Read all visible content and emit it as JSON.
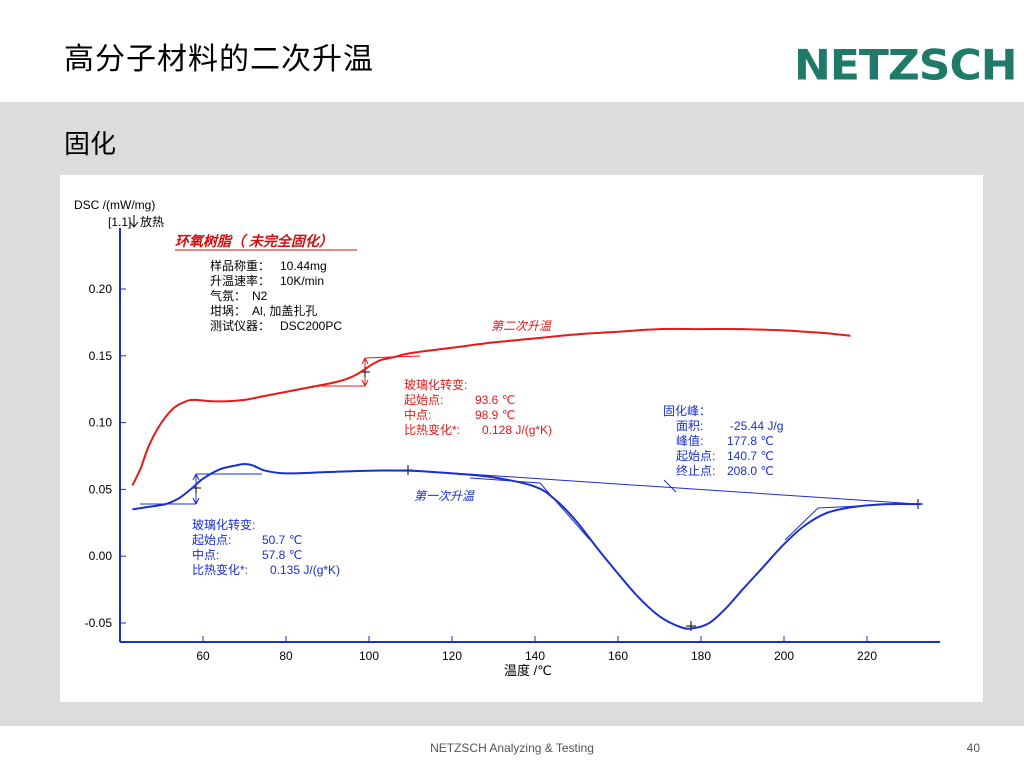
{
  "slide": {
    "title": "高分子材料的二次升温",
    "logo": "NETZSCH",
    "subtitle": "固化",
    "footer": "NETZSCH Analyzing & Testing",
    "page_number": "40"
  },
  "colors": {
    "first_heating": "#1a2fd0",
    "second_heating": "#e81818",
    "logo": "#1f7a6a",
    "axis": "#1a2fd0"
  },
  "chart_data": {
    "type": "line",
    "ylabel": "DSC /(mW/mg)",
    "ylabel2": "[1.1]",
    "exo_label": "放热",
    "xlabel": "温度 /℃",
    "xlim": [
      42,
      237
    ],
    "ylim": [
      -0.065,
      0.26
    ],
    "xticks": [
      60,
      80,
      100,
      120,
      140,
      160,
      180,
      200,
      220
    ],
    "yticks": [
      -0.05,
      0.0,
      0.05,
      0.1,
      0.15,
      0.2
    ],
    "ytick_labels": [
      "-0.05",
      "0.00",
      "0.05",
      "0.10",
      "0.15",
      "0.20"
    ],
    "sample_title": "环氧树脂（ 未完全固化）",
    "sample_info": [
      {
        "label": "样品称重：",
        "value": "10.44mg"
      },
      {
        "label": "升温速率：",
        "value": "10K/min"
      },
      {
        "label": "气氛：",
        "value": "N2"
      },
      {
        "label": "坩埚：",
        "value": "Al,  加盖扎孔"
      },
      {
        "label": "测试仪器：",
        "value": "DSC200PC"
      }
    ],
    "series": [
      {
        "name": "第二次升温",
        "color": "#e81818",
        "x": [
          43,
          45,
          47,
          50,
          53,
          56,
          58,
          62,
          66,
          70,
          75,
          80,
          85,
          90,
          94,
          97,
          99,
          101,
          103,
          106,
          110,
          120,
          130,
          140,
          150,
          160,
          170,
          180,
          190,
          200,
          205,
          210,
          216
        ],
        "y": [
          0.053,
          0.066,
          0.083,
          0.1,
          0.111,
          0.116,
          0.117,
          0.116,
          0.116,
          0.117,
          0.12,
          0.123,
          0.126,
          0.129,
          0.132,
          0.136,
          0.14,
          0.144,
          0.147,
          0.149,
          0.152,
          0.156,
          0.16,
          0.163,
          0.166,
          0.168,
          0.17,
          0.17,
          0.17,
          0.169,
          0.168,
          0.167,
          0.165
        ]
      },
      {
        "name": "第一次升温",
        "color": "#1a2fd0",
        "x": [
          43,
          47,
          51,
          54,
          57,
          60,
          64,
          68,
          70,
          72,
          75,
          80,
          90,
          100,
          110,
          120,
          130,
          140,
          145,
          150,
          155,
          160,
          165,
          170,
          175,
          178,
          182,
          186,
          190,
          195,
          200,
          205,
          210,
          215,
          220,
          225,
          233
        ],
        "y": [
          0.035,
          0.037,
          0.039,
          0.043,
          0.05,
          0.058,
          0.065,
          0.068,
          0.069,
          0.068,
          0.064,
          0.062,
          0.063,
          0.064,
          0.064,
          0.062,
          0.059,
          0.052,
          0.042,
          0.026,
          0.006,
          -0.013,
          -0.031,
          -0.045,
          -0.053,
          -0.054,
          -0.05,
          -0.039,
          -0.025,
          -0.008,
          0.009,
          0.023,
          0.032,
          0.036,
          0.038,
          0.039,
          0.039
        ]
      }
    ],
    "series_labels": {
      "second": "第二次升温",
      "first": "第一次升温"
    },
    "annotations": {
      "glass_transition_2": {
        "title": "玻璃化转变:",
        "onset_label": "起始点:",
        "onset_value": "93.6 ℃",
        "mid_label": "中点:",
        "mid_value": "98.9 ℃",
        "cp_label": "比热变化*:",
        "cp_value": "0.128 J/(g*K)"
      },
      "glass_transition_1": {
        "title": "玻璃化转变:",
        "onset_label": "起始点:",
        "onset_value": "50.7 ℃",
        "mid_label": "中点:",
        "mid_value": "57.8 ℃",
        "cp_label": "比热变化*:",
        "cp_value": "0.135 J/(g*K)"
      },
      "cure_peak": {
        "title": "固化峰：",
        "area_label": "面积:",
        "area_value": "-25.44 J/g",
        "peak_label": "峰值:",
        "peak_value": "177.8 ℃",
        "onset_label": "起始点:",
        "onset_value": "140.7 ℃",
        "end_label": "终止点:",
        "end_value": "208.0 ℃"
      }
    }
  }
}
